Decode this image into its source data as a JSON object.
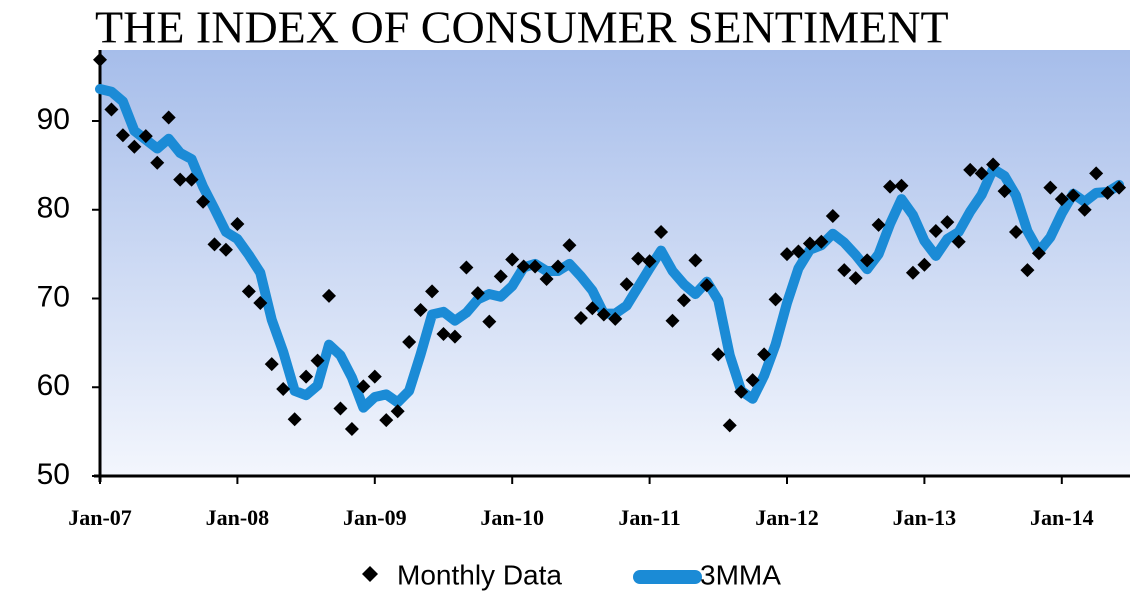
{
  "chart_data": {
    "type": "line",
    "title": "THE INDEX OF CONSUMER SENTIMENT",
    "categories": [
      "Jan-07",
      null,
      null,
      null,
      null,
      null,
      null,
      null,
      null,
      null,
      null,
      null,
      "Jan-08",
      null,
      null,
      null,
      null,
      null,
      null,
      null,
      null,
      null,
      null,
      null,
      "Jan-09",
      null,
      null,
      null,
      null,
      null,
      null,
      null,
      null,
      null,
      null,
      null,
      "Jan-10",
      null,
      null,
      null,
      null,
      null,
      null,
      null,
      null,
      null,
      null,
      null,
      "Jan-11",
      null,
      null,
      null,
      null,
      null,
      null,
      null,
      null,
      null,
      null,
      null,
      "Jan-12",
      null,
      null,
      null,
      null,
      null,
      null,
      null,
      null,
      null,
      null,
      null,
      "Jan-13",
      null,
      null,
      null,
      null,
      null,
      null,
      null,
      null,
      null,
      null,
      null,
      "Jan-14",
      null,
      null,
      null,
      null,
      null
    ],
    "series": [
      {
        "name": "Monthly Data",
        "color": "#000000",
        "mode": "markers",
        "values": [
          96.9,
          91.3,
          88.4,
          87.1,
          88.3,
          85.3,
          90.4,
          83.4,
          83.4,
          80.9,
          76.1,
          75.5,
          78.4,
          70.8,
          69.5,
          62.6,
          59.8,
          56.4,
          61.2,
          63.0,
          70.3,
          57.6,
          55.3,
          60.1,
          61.2,
          56.3,
          57.3,
          65.1,
          68.7,
          70.8,
          66.0,
          65.7,
          73.5,
          70.6,
          67.4,
          72.5,
          74.4,
          73.6,
          73.6,
          72.2,
          73.6,
          76.0,
          67.8,
          68.9,
          68.2,
          67.7,
          71.6,
          74.5,
          74.2,
          77.5,
          67.5,
          69.8,
          74.3,
          71.5,
          63.7,
          55.7,
          59.5,
          60.8,
          63.7,
          69.9,
          75.0,
          75.3,
          76.2,
          76.4,
          79.3,
          73.2,
          72.3,
          74.3,
          78.3,
          82.6,
          82.7,
          72.9,
          73.8,
          77.6,
          78.6,
          76.4,
          84.5,
          84.1,
          85.1,
          82.1,
          77.5,
          73.2,
          75.1,
          82.5,
          81.2,
          81.6,
          80.0,
          84.1,
          81.9,
          82.5
        ]
      },
      {
        "name": "3MMA",
        "color": "#1b8bd6",
        "mode": "line",
        "values": [
          93.6,
          93.3,
          92.2,
          88.9,
          87.9,
          86.9,
          88.0,
          86.4,
          85.7,
          82.6,
          80.1,
          77.5,
          76.7,
          74.9,
          72.9,
          67.6,
          64.0,
          59.6,
          59.1,
          60.2,
          64.8,
          63.6,
          61.1,
          57.7,
          58.9,
          59.2,
          58.3,
          59.6,
          63.7,
          68.2,
          68.5,
          67.5,
          68.4,
          69.9,
          70.5,
          70.2,
          71.4,
          73.5,
          73.9,
          73.1,
          73.1,
          73.9,
          72.5,
          70.9,
          68.3,
          68.3,
          69.2,
          71.3,
          73.4,
          75.4,
          73.1,
          71.6,
          70.5,
          71.9,
          69.8,
          63.6,
          59.6,
          58.7,
          61.3,
          64.8,
          69.5,
          73.4,
          75.5,
          76.0,
          77.3,
          76.3,
          74.9,
          73.3,
          75.0,
          78.4,
          81.2,
          79.4,
          76.5,
          74.8,
          76.7,
          77.5,
          79.8,
          81.7,
          84.6,
          83.8,
          81.6,
          77.6,
          75.3,
          76.9,
          79.6,
          81.8,
          80.9,
          81.9,
          82.0,
          82.8
        ]
      }
    ],
    "ylim": [
      50,
      98
    ],
    "yticks": [
      50,
      60,
      70,
      80,
      90
    ],
    "legend": "bottom"
  }
}
